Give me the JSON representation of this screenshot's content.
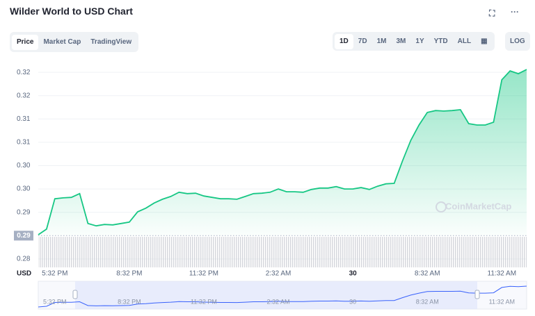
{
  "chart_data": {
    "type": "line",
    "title": "Wilder World to USD Chart",
    "y_axis_label": "USD",
    "categories": [
      null,
      null,
      "5:32 PM",
      null,
      null,
      null,
      null,
      null,
      null,
      null,
      null,
      "8:32 PM",
      null,
      null,
      null,
      null,
      null,
      null,
      null,
      null,
      "11:32 PM",
      null,
      null,
      null,
      null,
      null,
      null,
      null,
      null,
      "2:32 AM",
      null,
      null,
      null,
      null,
      null,
      null,
      null,
      null,
      "30",
      null,
      null,
      null,
      null,
      null,
      null,
      null,
      null,
      "8:32 AM",
      null,
      null,
      null,
      null,
      null,
      null,
      null,
      null,
      "11:32 AM",
      null,
      null,
      null
    ],
    "series": [
      {
        "name": "Price",
        "color": "#16c784",
        "values": [
          0.2892,
          0.2904,
          0.2969,
          0.2971,
          0.2972,
          0.298,
          0.2916,
          0.2911,
          0.2914,
          0.2913,
          0.2916,
          0.2919,
          0.2941,
          0.2949,
          0.296,
          0.2968,
          0.2974,
          0.2983,
          0.298,
          0.2981,
          0.2975,
          0.2972,
          0.2969,
          0.2969,
          0.2968,
          0.2974,
          0.298,
          0.2981,
          0.2983,
          0.299,
          0.2984,
          0.2984,
          0.2983,
          0.2989,
          0.2992,
          0.2992,
          0.2995,
          0.299,
          0.299,
          0.2993,
          0.2989,
          0.2996,
          0.3001,
          0.3002,
          0.305,
          0.3094,
          0.3127,
          0.3154,
          0.3158,
          0.3157,
          0.3158,
          0.316,
          0.313,
          0.3127,
          0.3127,
          0.3133,
          0.3224,
          0.3243,
          0.3237,
          0.3246
        ]
      }
    ],
    "ylim": [
      0.2822,
      0.3261
    ],
    "yticks": [
      {
        "value": 0.324,
        "label": "0.32"
      },
      {
        "value": 0.319,
        "label": "0.32"
      },
      {
        "value": 0.314,
        "label": "0.31"
      },
      {
        "value": 0.309,
        "label": "0.31"
      },
      {
        "value": 0.304,
        "label": "0.30"
      },
      {
        "value": 0.299,
        "label": "0.30"
      },
      {
        "value": 0.294,
        "label": "0.29"
      },
      {
        "value": 0.284,
        "label": "0.28"
      }
    ],
    "reference": {
      "value": 0.289,
      "label": "0.29"
    },
    "grid": true,
    "navigator_color": "#3861fb"
  },
  "ui": {
    "tabs": [
      "Price",
      "Market Cap",
      "TradingView"
    ],
    "ranges": [
      "1D",
      "7D",
      "1M",
      "3M",
      "1Y",
      "YTD",
      "ALL"
    ],
    "log": "LOG",
    "watermark": "CoinMarketCap"
  }
}
